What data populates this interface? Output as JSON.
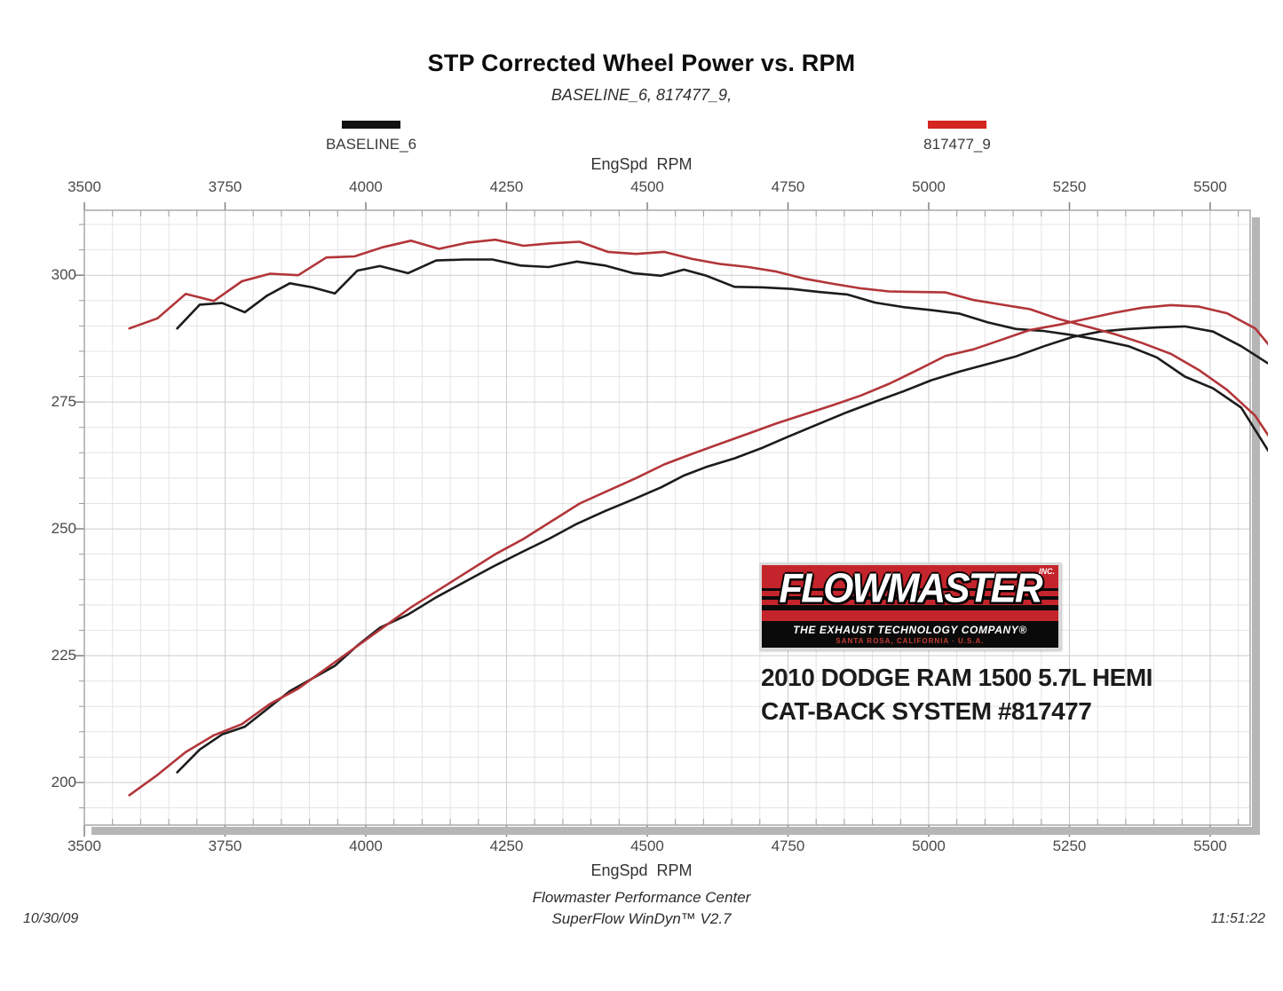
{
  "header": {
    "title": "STP Corrected Wheel Power vs. RPM",
    "subtitle": "BASELINE_6, 817477_9,"
  },
  "legend": [
    {
      "label": "BASELINE_6",
      "color": "#111111"
    },
    {
      "label": "817477_9",
      "color": "#d42520"
    }
  ],
  "axes": {
    "x_label_top": "EngSpd  RPM",
    "x_label_bottom": "EngSpd  RPM",
    "y_tick_labels": [
      300,
      275,
      250,
      225,
      200
    ]
  },
  "chart_data": {
    "type": "line",
    "title": "STP Corrected Wheel Power vs. RPM",
    "subtitle": "BASELINE_6, 817477_9,",
    "xlabel": "EngSpd  RPM",
    "ylabel": "",
    "grid": true,
    "legend_position": "top",
    "calibration": {
      "x_range": [
        3500,
        5571
      ],
      "y_range": [
        191.6,
        312.8
      ]
    },
    "x_ticks_major": [
      3500,
      3750,
      4000,
      4250,
      4500,
      4750,
      5000,
      5250,
      5500
    ],
    "y_ticks_major": [
      300,
      275,
      250,
      225,
      200
    ],
    "x_minor_step": 50,
    "y_minor_step": 5,
    "grid_color_minor": "#e4e4e4",
    "grid_color_major": "#cccccc",
    "frame_color": "#a8a8a8",
    "shadow_color": "#b6b6b6",
    "series": [
      {
        "name": "BASELINE_6",
        "quantity": "torque",
        "color": "#1c1c1c",
        "rpm": [
          3665,
          3705,
          3745,
          3785,
          3825,
          3865,
          3905,
          3945,
          3985,
          4025,
          4075,
          4125,
          4175,
          4225,
          4275,
          4325,
          4375,
          4425,
          4475,
          4525,
          4565,
          4605,
          4655,
          4705,
          4755,
          4805,
          4855,
          4905,
          4955,
          5005,
          5055,
          5105,
          5155,
          5205,
          5255,
          5305,
          5355,
          5405,
          5455,
          5505,
          5555,
          5610
        ],
        "values": [
          289.5,
          294.2,
          294.5,
          292.7,
          296.0,
          298.4,
          297.6,
          296.4,
          300.9,
          301.8,
          300.4,
          302.9,
          303.1,
          303.1,
          301.9,
          301.6,
          302.7,
          301.9,
          300.4,
          299.9,
          301.1,
          299.9,
          297.7,
          297.6,
          297.3,
          296.7,
          296.2,
          294.6,
          293.7,
          293.1,
          292.4,
          290.7,
          289.4,
          289.0,
          288.2,
          287.2,
          286.0,
          283.8,
          280.0,
          277.7,
          273.9,
          264.2
        ]
      },
      {
        "name": "BASELINE_6",
        "quantity": "power",
        "color": "#1c1c1c",
        "rpm": [
          3665,
          3705,
          3745,
          3785,
          3825,
          3865,
          3905,
          3945,
          3985,
          4025,
          4075,
          4125,
          4175,
          4225,
          4275,
          4325,
          4375,
          4425,
          4475,
          4525,
          4565,
          4605,
          4655,
          4705,
          4755,
          4805,
          4855,
          4905,
          4955,
          5005,
          5055,
          5105,
          5155,
          5205,
          5255,
          5305,
          5355,
          5405,
          5455,
          5505,
          5555,
          5610
        ],
        "values": [
          202.0,
          206.5,
          209.5,
          211.0,
          214.5,
          218.0,
          220.5,
          223.0,
          227.0,
          230.5,
          233.1,
          236.5,
          239.5,
          242.5,
          245.3,
          248.0,
          251.0,
          253.5,
          255.8,
          258.2,
          260.5,
          262.2,
          263.9,
          266.0,
          268.4,
          270.7,
          273.0,
          275.1,
          277.1,
          279.3,
          281.0,
          282.5,
          284.0,
          286.0,
          287.8,
          288.9,
          289.4,
          289.7,
          289.9,
          288.9,
          286.0,
          282.1
        ]
      },
      {
        "name": "817477_9",
        "quantity": "torque",
        "color": "#b23539",
        "rpm": [
          3580,
          3630,
          3680,
          3730,
          3780,
          3830,
          3880,
          3930,
          3980,
          4030,
          4080,
          4130,
          4180,
          4230,
          4280,
          4330,
          4380,
          4430,
          4480,
          4530,
          4580,
          4630,
          4680,
          4730,
          4780,
          4830,
          4880,
          4930,
          4980,
          5030,
          5080,
          5130,
          5180,
          5230,
          5280,
          5330,
          5380,
          5430,
          5480,
          5530,
          5580,
          5610
        ],
        "values": [
          289.5,
          291.5,
          296.3,
          294.9,
          298.8,
          300.3,
          300.0,
          303.5,
          303.7,
          305.5,
          306.8,
          305.2,
          306.4,
          307.0,
          305.8,
          306.3,
          306.6,
          304.6,
          304.2,
          304.6,
          303.2,
          302.2,
          301.6,
          300.7,
          299.3,
          298.3,
          297.4,
          296.8,
          296.7,
          296.6,
          295.1,
          294.2,
          293.3,
          291.4,
          289.9,
          288.4,
          286.6,
          284.5,
          281.3,
          277.4,
          272.3,
          267.3
        ]
      },
      {
        "name": "817477_9",
        "quantity": "power",
        "color": "#b23539",
        "rpm": [
          3580,
          3630,
          3680,
          3730,
          3780,
          3830,
          3880,
          3930,
          3980,
          4030,
          4080,
          4130,
          4180,
          4230,
          4280,
          4330,
          4380,
          4430,
          4480,
          4530,
          4580,
          4630,
          4680,
          4730,
          4780,
          4830,
          4880,
          4930,
          4980,
          5030,
          5080,
          5130,
          5180,
          5230,
          5280,
          5330,
          5380,
          5430,
          5480,
          5530,
          5580,
          5610
        ],
        "values": [
          197.5,
          201.5,
          206.0,
          209.3,
          211.5,
          215.5,
          218.5,
          222.5,
          226.5,
          230.5,
          234.5,
          238.0,
          241.5,
          245.0,
          248.0,
          251.5,
          255.0,
          257.5,
          260.0,
          262.7,
          264.8,
          266.8,
          268.8,
          270.8,
          272.6,
          274.4,
          276.3,
          278.6,
          281.3,
          284.1,
          285.4,
          287.3,
          289.2,
          290.2,
          291.4,
          292.6,
          293.6,
          294.1,
          293.8,
          292.5,
          289.5,
          285.5
        ]
      }
    ]
  },
  "overlay": {
    "logo": {
      "brand": "FLOWMASTER",
      "inc": "INC.",
      "tagline": "THE EXHAUST TECHNOLOGY COMPANY®",
      "address": "SANTA ROSA, CALIFORNIA · U.S.A.",
      "red": "#c4242b"
    },
    "vehicle_line1": "2010 DODGE RAM 1500 5.7L HEMI",
    "vehicle_line2": "CAT-BACK SYSTEM #817477"
  },
  "footer": {
    "facility": "Flowmaster Performance Center",
    "software": "SuperFlow WinDyn™ V2.7",
    "date": "10/30/09",
    "time": "11:51:22"
  }
}
